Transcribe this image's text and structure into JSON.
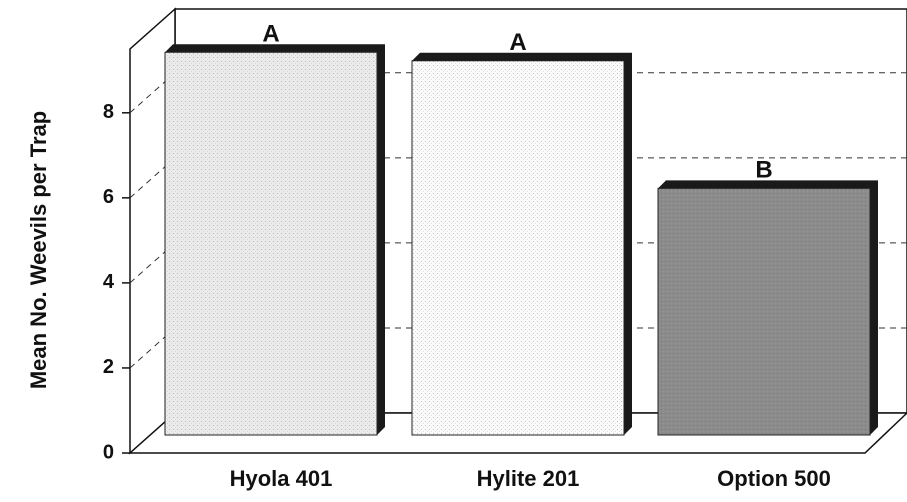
{
  "chart_data": {
    "type": "bar3d",
    "y_label": "Mean  No. Weevils per Trap",
    "categories": [
      "Hyola 401",
      "Hylite 201",
      "Option 500"
    ],
    "values": [
      9.0,
      8.8,
      5.8
    ],
    "significance_labels": [
      "A",
      "A",
      "B"
    ],
    "colors": [
      "#ebebeb",
      "#fbfbfb",
      "#8c8c8c"
    ],
    "ylim": [
      0,
      9.5
    ],
    "yticks": [
      0,
      2,
      4,
      6,
      8
    ],
    "grid": true
  }
}
